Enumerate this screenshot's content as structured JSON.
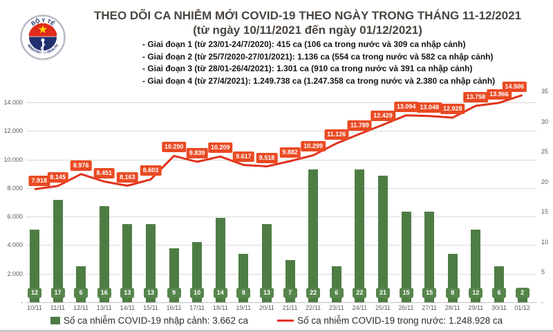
{
  "header": {
    "title": "THEO DÕI CA NHIỄM MỚI COVID-19 THEO NGÀY TRONG THÁNG 11-12/2021",
    "subtitle": "(từ ngày 10/11/2021 đến ngày 01/12/2021)",
    "phases": [
      "- Giai đoạn 1 (từ 23/01-24/7/2020): 415 ca (106 ca trong nước và 309 ca nhập cảnh)",
      "- Giai đoạn 2 (từ 25/7/2020-27/01/2021): 1.136 ca (554 ca trong nước và 582 ca nhập cảnh)",
      "- Giai đoạn 3 (từ 28/01-26/4/2021): 1.301 ca (910 ca trong nước và 391 ca nhập cảnh)",
      "- Giai đoạn 4 (từ 27/4/2021): 1.249.738 ca (1.247.358 ca trong nước và 2.380 ca nhập cảnh)"
    ],
    "logo": {
      "top_text": "BỘ Y TẾ",
      "bottom_text": "MINISTRY OF HEALTH"
    }
  },
  "chart_data": {
    "type": "bar",
    "subtype": "dual-axis bar + line combo",
    "categories": [
      "10/11",
      "11/11",
      "12/11",
      "13/11",
      "14/11",
      "15/11",
      "16/11",
      "17/11",
      "18/11",
      "19/11",
      "20/11",
      "21/11",
      "22/11",
      "23/11",
      "24/11",
      "25/11",
      "26/11",
      "27/11",
      "28/11",
      "29/11",
      "30/11",
      "01/12"
    ],
    "series": [
      {
        "name": "Số ca nhiễm COVID-19 nhập cảnh",
        "type": "bar",
        "axis": "right",
        "color": "#4e7d44",
        "values": [
          12,
          17,
          6,
          16,
          13,
          13,
          9,
          10,
          14,
          8,
          13,
          7,
          22,
          6,
          22,
          21,
          15,
          15,
          8,
          12,
          6,
          2
        ],
        "labels": [
          "12",
          "17",
          "6",
          "16",
          "13",
          "13",
          "9",
          "10",
          "14",
          "8",
          "13",
          "7",
          "22",
          "6",
          "22",
          "21",
          "15",
          "15",
          "8",
          "12",
          "6",
          "2"
        ]
      },
      {
        "name": "Số ca nhiễm COVID-19 trong nước",
        "type": "line",
        "axis": "left",
        "color": "#e1321c",
        "values": [
          7918,
          8145,
          8976,
          8451,
          8163,
          8603,
          10250,
          9839,
          10209,
          9617,
          9518,
          9882,
          10299,
          11126,
          11789,
          12429,
          13094,
          13048,
          12928,
          13758,
          13966,
          14506
        ],
        "labels": [
          "7.918",
          "8.145",
          "8.976",
          "8.451",
          "8.163",
          "8.603",
          "10.250",
          "9.839",
          "10.209",
          "9.617",
          "9.518",
          "9.882",
          "10.299",
          "11.126",
          "11.789",
          "12.429",
          "13.094",
          "13.048",
          "12.928",
          "13.758",
          "13.966",
          "14.506"
        ]
      }
    ],
    "left_axis": {
      "ticks": [
        "14.000",
        "12.000",
        "10.000",
        "8.000",
        "6.000",
        "4.000",
        "2.000",
        "-"
      ],
      "min": 0,
      "max": 14000,
      "major_unit": 2000
    },
    "right_axis": {
      "ticks": [
        "35",
        "30",
        "25",
        "20",
        "15",
        "10",
        "5",
        "-"
      ],
      "min": 0,
      "max": 35,
      "major_unit": 5
    },
    "grid": true,
    "legend_position": "bottom",
    "legend": [
      {
        "label": "Số ca nhiễm COVID-19 nhập cảnh: 3.662 ca",
        "swatch": "green-bar"
      },
      {
        "label": "Số ca nhiễm COVID-19 trong nước: 1.248.928 ca",
        "swatch": "red-line"
      }
    ],
    "colors": {
      "bar": "#4e7d44",
      "bar_label_bg": "#57864c",
      "line": "#e1321c",
      "line_label_bg": "#ea4a23",
      "gridline": "#d9d9d9",
      "tick_text": "#595959"
    }
  }
}
